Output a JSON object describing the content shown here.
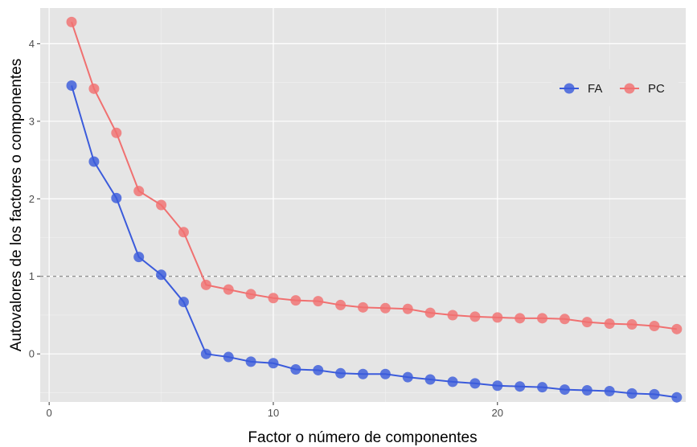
{
  "chart_data": {
    "type": "line",
    "xlabel": "Factor o número de componentes",
    "ylabel": "Autovalores de los factores o componentes",
    "xlim": [
      -0.4,
      28.4
    ],
    "ylim": [
      -0.62,
      4.46
    ],
    "x_ticks": [
      0,
      10,
      20
    ],
    "y_ticks": [
      0,
      1,
      2,
      3,
      4
    ],
    "grid": true,
    "reference_line": {
      "y": 1,
      "style": "dashed"
    },
    "legend_position": "top-right",
    "x": [
      1,
      2,
      3,
      4,
      5,
      6,
      7,
      8,
      9,
      10,
      11,
      12,
      13,
      14,
      15,
      16,
      17,
      18,
      19,
      20,
      21,
      22,
      23,
      24,
      25,
      26,
      27,
      28
    ],
    "series": [
      {
        "name": "FA",
        "color": "#3b5bdb",
        "values": [
          3.46,
          2.48,
          2.01,
          1.25,
          1.02,
          0.67,
          0.0,
          -0.04,
          -0.1,
          -0.12,
          -0.2,
          -0.21,
          -0.25,
          -0.26,
          -0.26,
          -0.3,
          -0.33,
          -0.36,
          -0.38,
          -0.41,
          -0.42,
          -0.43,
          -0.46,
          -0.47,
          -0.48,
          -0.51,
          -0.52,
          -0.56
        ]
      },
      {
        "name": "PC",
        "color": "#f07070",
        "values": [
          4.28,
          3.42,
          2.85,
          2.1,
          1.92,
          1.57,
          0.89,
          0.83,
          0.77,
          0.72,
          0.69,
          0.68,
          0.63,
          0.6,
          0.59,
          0.58,
          0.53,
          0.5,
          0.48,
          0.47,
          0.46,
          0.46,
          0.45,
          0.41,
          0.39,
          0.38,
          0.36,
          0.32
        ]
      }
    ]
  }
}
